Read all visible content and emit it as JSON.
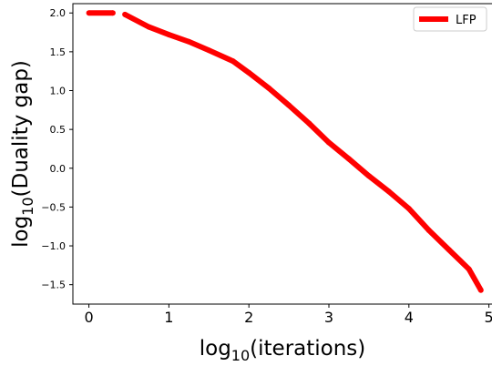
{
  "chart_data": {
    "type": "line",
    "title": "",
    "xlabel_base": "log",
    "xlabel_sub": "10",
    "xlabel_rest": "(iterations)",
    "ylabel_base": "log",
    "ylabel_sub": "10",
    "ylabel_rest": "(Duality gap)",
    "xlim": [
      -0.2,
      5.05
    ],
    "ylim": [
      -1.75,
      2.12
    ],
    "x_ticks": [
      0,
      1,
      2,
      3,
      4,
      5
    ],
    "x_tick_labels": [
      "0",
      "1",
      "2",
      "3",
      "4",
      "5"
    ],
    "y_ticks": [
      -1.5,
      -1.0,
      -0.5,
      0.0,
      0.5,
      1.0,
      1.5,
      2.0
    ],
    "y_tick_labels": [
      "−1.5",
      "−1.0",
      "−0.5",
      "0.0",
      "0.5",
      "1.0",
      "1.5",
      "2.0"
    ],
    "grid": false,
    "legend_position": "top-right",
    "series": [
      {
        "name": "LFP",
        "color": "#ff0000",
        "line_style": "dashed",
        "segments": [
          {
            "x": [
              0.0,
              0.3
            ],
            "y": [
              2.0,
              2.0
            ]
          },
          {
            "x": [
              0.45,
              0.75,
              1.0,
              1.25,
              1.5,
              1.8,
              2.0,
              2.25,
              2.5,
              2.75,
              3.0,
              3.25,
              3.5,
              3.75,
              4.0,
              4.25,
              4.5,
              4.75,
              4.9
            ],
            "y": [
              1.98,
              1.82,
              1.72,
              1.63,
              1.52,
              1.38,
              1.23,
              1.03,
              0.81,
              0.58,
              0.33,
              0.12,
              -0.1,
              -0.3,
              -0.52,
              -0.8,
              -1.05,
              -1.3,
              -1.57
            ]
          }
        ]
      }
    ]
  }
}
